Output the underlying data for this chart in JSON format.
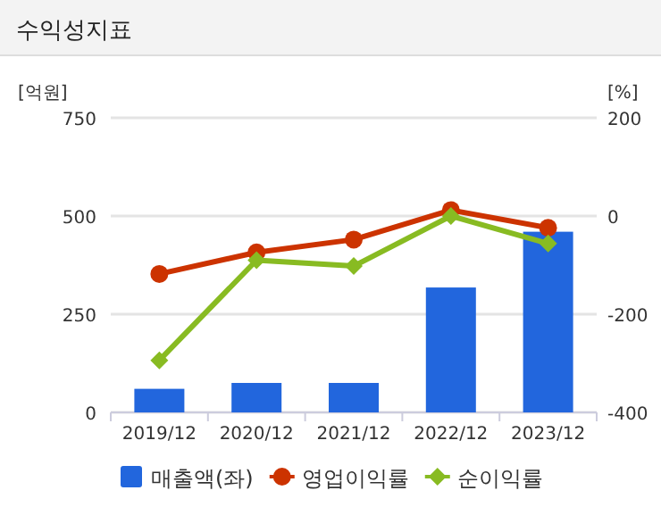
{
  "chart_data": {
    "type": "bar",
    "title": "수익성지표",
    "ylabel": "[억원]",
    "y2label": "[%]",
    "categories": [
      "2019/12",
      "2020/12",
      "2021/12",
      "2022/12",
      "2023/12"
    ],
    "series": [
      {
        "name": "매출액(좌)",
        "color": "#2266dd",
        "values": [
          60,
          75,
          75,
          318,
          460
        ]
      },
      {
        "name": "영업이익률",
        "type": "line",
        "axis": "y2",
        "marker": "circle",
        "color": "#cc3300",
        "values": [
          -118,
          -74,
          -48,
          12,
          -24
        ]
      },
      {
        "name": "순이익률",
        "type": "line",
        "axis": "y2",
        "marker": "diamond",
        "color": "#88bb22",
        "values": [
          -294,
          -90,
          -102,
          0,
          -56
        ]
      }
    ],
    "ylim": [
      0,
      750
    ],
    "yticks": [
      0,
      250,
      500,
      750
    ],
    "y2lim": [
      -400,
      200
    ],
    "y2ticks": [
      -400,
      -200,
      0,
      200
    ],
    "grid": "y",
    "legend": "bottom"
  }
}
